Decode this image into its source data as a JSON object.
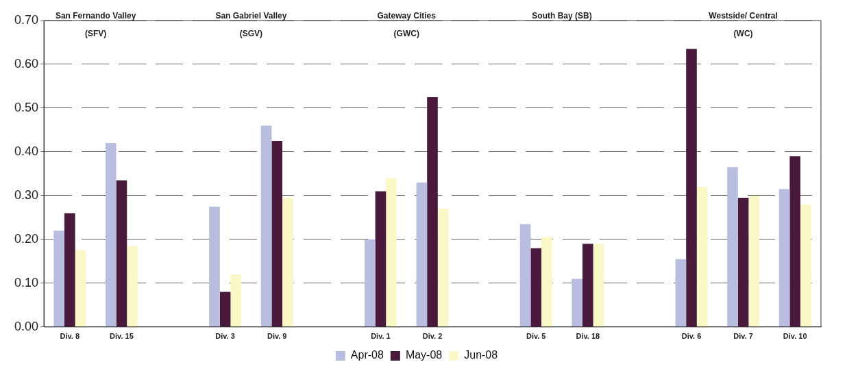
{
  "chart_data": {
    "type": "bar",
    "categories": [
      "Div. 8",
      "Div. 15",
      null,
      "Div. 3",
      "Div. 9",
      null,
      "Div. 1",
      "Div. 2",
      null,
      "Div. 5",
      "Div. 18",
      null,
      "Div. 6",
      "Div. 7",
      "Div. 10"
    ],
    "series": [
      {
        "name": "Apr-08",
        "color": "#b9bde0",
        "values": [
          0.22,
          0.42,
          null,
          0.275,
          0.46,
          null,
          0.2,
          0.33,
          null,
          0.235,
          0.11,
          null,
          0.155,
          0.365,
          0.315
        ]
      },
      {
        "name": "May-08",
        "color": "#4a1a3c",
        "values": [
          0.26,
          0.335,
          null,
          0.08,
          0.425,
          null,
          0.31,
          0.525,
          null,
          0.18,
          0.19,
          null,
          0.635,
          0.295,
          0.39
        ]
      },
      {
        "name": "Jun-08",
        "color": "#fbf8c8",
        "values": [
          0.175,
          0.185,
          null,
          0.12,
          0.295,
          null,
          0.34,
          0.27,
          null,
          0.205,
          0.19,
          null,
          0.32,
          0.3,
          0.28
        ]
      }
    ],
    "annotations": [
      "San Fernando Valley\n(SFV)",
      "San Gabriel Valley\n(SGV)",
      "Gateway Cities\n(GWC)",
      "South Bay (SB)",
      "Westside/ Central\n(WC)"
    ],
    "ylim": [
      0,
      0.7
    ],
    "yticks": [
      {
        "value": 0,
        "label": "0.00"
      },
      {
        "value": 0.1,
        "label": "0.10"
      },
      {
        "value": 0.2,
        "label": "0.20"
      },
      {
        "value": 0.3,
        "label": "0.30"
      },
      {
        "value": 0.4,
        "label": "0.40"
      },
      {
        "value": 0.5,
        "label": "0.50"
      },
      {
        "value": 0.6,
        "label": "0.60"
      },
      {
        "value": 0.7,
        "label": "0.70"
      }
    ],
    "grid": "y",
    "legend": "bottom"
  }
}
